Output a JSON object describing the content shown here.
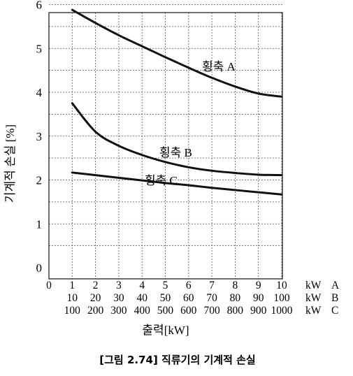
{
  "chart_data": {
    "type": "line",
    "ylabel": "기계적 손실 [%]",
    "xlabel": "출력[kW]",
    "caption": "[그림 2.74] 직류기의 기계적 손실",
    "ylim": [
      0,
      6
    ],
    "yticks": [
      0,
      1,
      2,
      3,
      4,
      5,
      6
    ],
    "xlim": [
      0,
      10
    ],
    "xtick_rows": [
      {
        "labels": [
          "0",
          "1",
          "2",
          "3",
          "4",
          "5",
          "6",
          "7",
          "8",
          "9",
          "10"
        ],
        "unit": "kW",
        "scale": "A"
      },
      {
        "labels": [
          "10",
          "20",
          "30",
          "40",
          "50",
          "60",
          "70",
          "80",
          "90",
          "100"
        ],
        "unit": "kW",
        "scale": "B"
      },
      {
        "labels": [
          "100",
          "200",
          "300",
          "400",
          "500",
          "600",
          "700",
          "800",
          "900",
          "1000"
        ],
        "unit": "kW",
        "scale": "C"
      }
    ],
    "grid": true,
    "series": [
      {
        "name": "횡축 A",
        "x": [
          1,
          2,
          3,
          4,
          5,
          6,
          7,
          8,
          9,
          10
        ],
        "y": [
          5.88,
          5.58,
          5.3,
          5.05,
          4.8,
          4.56,
          4.33,
          4.13,
          3.97,
          3.9
        ]
      },
      {
        "name": "횡축 B",
        "x": [
          1,
          2,
          3,
          4,
          5,
          6,
          7,
          8,
          9,
          10
        ],
        "y": [
          3.75,
          3.1,
          2.78,
          2.57,
          2.41,
          2.29,
          2.21,
          2.16,
          2.12,
          2.11
        ]
      },
      {
        "name": "횡축 C",
        "x": [
          1,
          2,
          3,
          4,
          5,
          6,
          7,
          8,
          9,
          10
        ],
        "y": [
          2.17,
          2.11,
          2.05,
          1.99,
          1.93,
          1.88,
          1.82,
          1.77,
          1.72,
          1.67
        ]
      }
    ]
  }
}
